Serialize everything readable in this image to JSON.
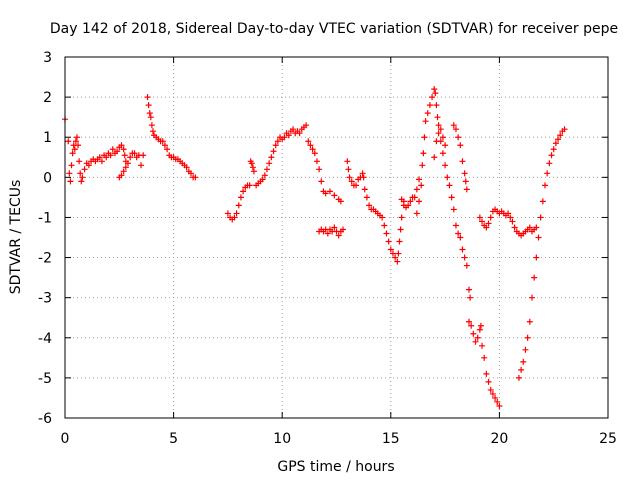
{
  "chart_data": {
    "type": "scatter",
    "title": "Day 142 of 2018, Sidereal Day-to-day VTEC variation (SDTVAR) for receiver pepe",
    "xlabel": "GPS time / hours",
    "ylabel": "SDTVAR / TECUs",
    "xlim": [
      0,
      25
    ],
    "ylim": [
      -6,
      3
    ],
    "xticks": [
      0,
      5,
      10,
      15,
      20,
      25
    ],
    "yticks": [
      -6,
      -5,
      -4,
      -3,
      -2,
      -1,
      0,
      1,
      2,
      3
    ],
    "grid": true,
    "marker": "+",
    "color": "#ff0000",
    "series": [
      {
        "name": "SDTVAR",
        "points": [
          [
            0.0,
            1.45
          ],
          [
            0.15,
            0.9
          ],
          [
            0.2,
            0.1
          ],
          [
            0.25,
            -0.1
          ],
          [
            0.3,
            0.3
          ],
          [
            0.35,
            0.6
          ],
          [
            0.4,
            0.8
          ],
          [
            0.45,
            0.7
          ],
          [
            0.5,
            0.9
          ],
          [
            0.55,
            1.0
          ],
          [
            0.6,
            0.8
          ],
          [
            0.65,
            0.4
          ],
          [
            0.7,
            0.1
          ],
          [
            0.75,
            -0.1
          ],
          [
            0.8,
            0.0
          ],
          [
            0.9,
            0.2
          ],
          [
            1.0,
            0.35
          ],
          [
            1.1,
            0.3
          ],
          [
            1.2,
            0.4
          ],
          [
            1.3,
            0.45
          ],
          [
            1.4,
            0.4
          ],
          [
            1.5,
            0.45
          ],
          [
            1.6,
            0.5
          ],
          [
            1.7,
            0.4
          ],
          [
            1.8,
            0.55
          ],
          [
            1.9,
            0.5
          ],
          [
            2.0,
            0.6
          ],
          [
            2.1,
            0.55
          ],
          [
            2.2,
            0.7
          ],
          [
            2.3,
            0.6
          ],
          [
            2.4,
            0.65
          ],
          [
            2.5,
            0.75
          ],
          [
            2.6,
            0.8
          ],
          [
            2.7,
            0.7
          ],
          [
            2.75,
            0.55
          ],
          [
            2.8,
            0.4
          ],
          [
            2.5,
            0.0
          ],
          [
            2.6,
            0.05
          ],
          [
            2.7,
            0.15
          ],
          [
            2.8,
            0.25
          ],
          [
            2.9,
            0.35
          ],
          [
            3.0,
            0.5
          ],
          [
            3.1,
            0.6
          ],
          [
            3.2,
            0.6
          ],
          [
            3.3,
            0.5
          ],
          [
            3.4,
            0.55
          ],
          [
            3.5,
            0.3
          ],
          [
            3.6,
            0.55
          ],
          [
            3.8,
            2.0
          ],
          [
            3.85,
            1.8
          ],
          [
            3.9,
            1.6
          ],
          [
            3.95,
            1.5
          ],
          [
            4.0,
            1.3
          ],
          [
            4.05,
            1.15
          ],
          [
            4.1,
            1.05
          ],
          [
            4.2,
            1.0
          ],
          [
            4.3,
            0.95
          ],
          [
            4.4,
            0.9
          ],
          [
            4.5,
            0.9
          ],
          [
            4.6,
            0.8
          ],
          [
            4.7,
            0.7
          ],
          [
            4.8,
            0.55
          ],
          [
            4.9,
            0.5
          ],
          [
            5.0,
            0.5
          ],
          [
            5.1,
            0.45
          ],
          [
            5.2,
            0.45
          ],
          [
            5.3,
            0.4
          ],
          [
            5.4,
            0.35
          ],
          [
            5.5,
            0.3
          ],
          [
            5.6,
            0.25
          ],
          [
            5.7,
            0.15
          ],
          [
            5.8,
            0.1
          ],
          [
            5.9,
            0.0
          ],
          [
            6.0,
            0.0
          ],
          [
            7.5,
            -0.9
          ],
          [
            7.6,
            -1.0
          ],
          [
            7.7,
            -1.05
          ],
          [
            7.8,
            -1.0
          ],
          [
            7.9,
            -0.9
          ],
          [
            8.0,
            -0.7
          ],
          [
            8.1,
            -0.5
          ],
          [
            8.2,
            -0.35
          ],
          [
            8.3,
            -0.25
          ],
          [
            8.4,
            -0.2
          ],
          [
            8.5,
            -0.2
          ],
          [
            8.55,
            0.4
          ],
          [
            8.6,
            0.35
          ],
          [
            8.65,
            0.25
          ],
          [
            8.7,
            0.15
          ],
          [
            8.8,
            -0.2
          ],
          [
            8.9,
            -0.15
          ],
          [
            9.0,
            -0.1
          ],
          [
            9.1,
            -0.05
          ],
          [
            9.2,
            0.05
          ],
          [
            9.3,
            0.2
          ],
          [
            9.4,
            0.35
          ],
          [
            9.5,
            0.5
          ],
          [
            9.6,
            0.65
          ],
          [
            9.7,
            0.8
          ],
          [
            9.8,
            0.9
          ],
          [
            9.9,
            1.0
          ],
          [
            10.0,
            0.95
          ],
          [
            10.1,
            1.0
          ],
          [
            10.2,
            1.1
          ],
          [
            10.3,
            1.05
          ],
          [
            10.4,
            1.15
          ],
          [
            10.5,
            1.2
          ],
          [
            10.6,
            1.1
          ],
          [
            10.7,
            1.15
          ],
          [
            10.8,
            1.1
          ],
          [
            10.9,
            1.2
          ],
          [
            11.0,
            1.25
          ],
          [
            11.1,
            1.3
          ],
          [
            11.2,
            0.9
          ],
          [
            11.3,
            0.8
          ],
          [
            11.4,
            0.7
          ],
          [
            11.5,
            0.6
          ],
          [
            11.6,
            0.4
          ],
          [
            11.7,
            0.2
          ],
          [
            11.8,
            -0.1
          ],
          [
            11.9,
            -0.35
          ],
          [
            12.0,
            -0.4
          ],
          [
            12.2,
            -0.35
          ],
          [
            12.4,
            -0.45
          ],
          [
            12.6,
            -0.55
          ],
          [
            12.7,
            -0.6
          ],
          [
            11.7,
            -1.35
          ],
          [
            11.8,
            -1.3
          ],
          [
            11.9,
            -1.35
          ],
          [
            12.0,
            -1.3
          ],
          [
            12.1,
            -1.4
          ],
          [
            12.2,
            -1.3
          ],
          [
            12.3,
            -1.35
          ],
          [
            12.4,
            -1.25
          ],
          [
            12.5,
            -1.35
          ],
          [
            12.6,
            -1.45
          ],
          [
            12.7,
            -1.35
          ],
          [
            12.8,
            -1.3
          ],
          [
            13.0,
            0.4
          ],
          [
            13.05,
            0.2
          ],
          [
            13.1,
            0.0
          ],
          [
            13.2,
            -0.1
          ],
          [
            13.3,
            -0.2
          ],
          [
            13.4,
            -0.2
          ],
          [
            13.5,
            -0.05
          ],
          [
            13.6,
            0.0
          ],
          [
            13.7,
            0.1
          ],
          [
            13.75,
            0.0
          ],
          [
            13.8,
            -0.3
          ],
          [
            13.9,
            -0.5
          ],
          [
            14.0,
            -0.7
          ],
          [
            14.1,
            -0.8
          ],
          [
            14.2,
            -0.8
          ],
          [
            14.3,
            -0.85
          ],
          [
            14.4,
            -0.9
          ],
          [
            14.5,
            -0.95
          ],
          [
            14.6,
            -1.0
          ],
          [
            14.7,
            -1.2
          ],
          [
            14.8,
            -1.4
          ],
          [
            14.9,
            -1.6
          ],
          [
            15.0,
            -1.8
          ],
          [
            15.1,
            -1.9
          ],
          [
            15.2,
            -2.0
          ],
          [
            15.3,
            -2.1
          ],
          [
            15.35,
            -1.9
          ],
          [
            15.4,
            -1.6
          ],
          [
            15.45,
            -1.3
          ],
          [
            15.5,
            -1.0
          ],
          [
            15.6,
            -0.7
          ],
          [
            15.5,
            -0.55
          ],
          [
            15.6,
            -0.6
          ],
          [
            15.7,
            -0.75
          ],
          [
            15.8,
            -0.7
          ],
          [
            15.9,
            -0.6
          ],
          [
            16.0,
            -0.5
          ],
          [
            16.1,
            -0.5
          ],
          [
            16.2,
            -0.3
          ],
          [
            16.3,
            -0.05
          ],
          [
            16.2,
            -0.9
          ],
          [
            16.3,
            -0.6
          ],
          [
            16.4,
            -0.2
          ],
          [
            16.45,
            0.3
          ],
          [
            16.5,
            0.6
          ],
          [
            16.55,
            1.0
          ],
          [
            16.6,
            1.4
          ],
          [
            16.7,
            1.6
          ],
          [
            16.8,
            1.8
          ],
          [
            16.9,
            2.0
          ],
          [
            17.0,
            2.2
          ],
          [
            17.05,
            2.1
          ],
          [
            17.1,
            1.8
          ],
          [
            17.15,
            1.5
          ],
          [
            17.2,
            1.3
          ],
          [
            17.3,
            1.2
          ],
          [
            17.4,
            1.0
          ],
          [
            17.5,
            0.8
          ],
          [
            17.0,
            0.5
          ],
          [
            17.1,
            0.9
          ],
          [
            17.2,
            1.1
          ],
          [
            17.3,
            0.9
          ],
          [
            17.4,
            0.6
          ],
          [
            17.5,
            0.3
          ],
          [
            17.6,
            0.0
          ],
          [
            17.7,
            -0.2
          ],
          [
            17.8,
            -0.5
          ],
          [
            17.9,
            -0.8
          ],
          [
            18.0,
            -1.2
          ],
          [
            18.1,
            -1.4
          ],
          [
            18.2,
            -1.5
          ],
          [
            18.3,
            -1.8
          ],
          [
            18.4,
            -2.0
          ],
          [
            18.5,
            -2.2
          ],
          [
            17.9,
            1.3
          ],
          [
            18.0,
            1.2
          ],
          [
            18.1,
            1.0
          ],
          [
            18.2,
            0.8
          ],
          [
            18.3,
            0.4
          ],
          [
            18.4,
            0.1
          ],
          [
            18.45,
            -0.1
          ],
          [
            18.5,
            -0.3
          ],
          [
            18.6,
            -2.8
          ],
          [
            18.65,
            -3.0
          ],
          [
            18.6,
            -3.6
          ],
          [
            18.7,
            -3.7
          ],
          [
            18.8,
            -3.9
          ],
          [
            18.9,
            -4.1
          ],
          [
            19.0,
            -4.0
          ],
          [
            19.1,
            -3.8
          ],
          [
            19.15,
            -3.7
          ],
          [
            19.2,
            -4.2
          ],
          [
            19.3,
            -4.5
          ],
          [
            19.4,
            -4.9
          ],
          [
            19.5,
            -5.1
          ],
          [
            19.6,
            -5.3
          ],
          [
            19.7,
            -5.4
          ],
          [
            19.8,
            -5.5
          ],
          [
            19.9,
            -5.6
          ],
          [
            20.0,
            -5.7
          ],
          [
            19.1,
            -1.0
          ],
          [
            19.2,
            -1.1
          ],
          [
            19.3,
            -1.2
          ],
          [
            19.4,
            -1.25
          ],
          [
            19.5,
            -1.15
          ],
          [
            19.6,
            -1.0
          ],
          [
            19.7,
            -0.85
          ],
          [
            19.8,
            -0.8
          ],
          [
            19.9,
            -0.85
          ],
          [
            20.0,
            -0.9
          ],
          [
            20.1,
            -0.85
          ],
          [
            20.2,
            -0.9
          ],
          [
            20.3,
            -0.95
          ],
          [
            20.4,
            -0.9
          ],
          [
            20.5,
            -1.0
          ],
          [
            20.6,
            -1.1
          ],
          [
            20.7,
            -1.25
          ],
          [
            20.8,
            -1.35
          ],
          [
            20.9,
            -1.4
          ],
          [
            21.0,
            -1.45
          ],
          [
            21.1,
            -1.4
          ],
          [
            21.2,
            -1.35
          ],
          [
            21.3,
            -1.3
          ],
          [
            21.4,
            -1.25
          ],
          [
            21.5,
            -1.35
          ],
          [
            21.6,
            -1.3
          ],
          [
            21.7,
            -1.25
          ],
          [
            20.9,
            -5.0
          ],
          [
            21.0,
            -4.8
          ],
          [
            21.1,
            -4.6
          ],
          [
            21.2,
            -4.3
          ],
          [
            21.3,
            -4.0
          ],
          [
            21.4,
            -3.6
          ],
          [
            21.5,
            -3.0
          ],
          [
            21.6,
            -2.5
          ],
          [
            21.7,
            -2.0
          ],
          [
            21.8,
            -1.5
          ],
          [
            21.9,
            -1.0
          ],
          [
            22.0,
            -0.6
          ],
          [
            22.1,
            -0.2
          ],
          [
            22.2,
            0.1
          ],
          [
            22.3,
            0.35
          ],
          [
            22.4,
            0.55
          ],
          [
            22.5,
            0.7
          ],
          [
            22.6,
            0.85
          ],
          [
            22.7,
            0.95
          ],
          [
            22.8,
            1.05
          ],
          [
            22.9,
            1.15
          ],
          [
            23.0,
            1.2
          ]
        ]
      }
    ]
  }
}
